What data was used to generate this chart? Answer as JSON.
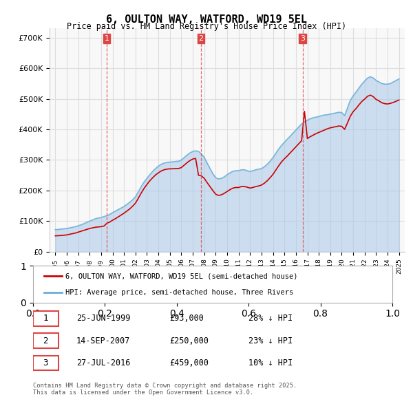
{
  "title": "6, OULTON WAY, WATFORD, WD19 5EL",
  "subtitle": "Price paid vs. HM Land Registry's House Price Index (HPI)",
  "legend_red": "6, OULTON WAY, WATFORD, WD19 5EL (semi-detached house)",
  "legend_blue": "HPI: Average price, semi-detached house, Three Rivers",
  "footer": "Contains HM Land Registry data © Crown copyright and database right 2025.\nThis data is licensed under the Open Government Licence v3.0.",
  "transactions": [
    {
      "label": "1",
      "date": "25-JUN-1999",
      "price": 93000,
      "hpi_diff": "28% ↓ HPI",
      "year_x": 1999.49
    },
    {
      "label": "2",
      "date": "14-SEP-2007",
      "price": 250000,
      "hpi_diff": "23% ↓ HPI",
      "year_x": 2007.71
    },
    {
      "label": "3",
      "date": "27-JUL-2016",
      "price": 459000,
      "hpi_diff": "10% ↓ HPI",
      "year_x": 2016.58
    }
  ],
  "ylim": [
    0,
    730000
  ],
  "yticks": [
    0,
    100000,
    200000,
    300000,
    400000,
    500000,
    600000,
    700000
  ],
  "ytick_labels": [
    "£0",
    "£100K",
    "£200K",
    "£300K",
    "£400K",
    "£500K",
    "£600K",
    "£700K"
  ],
  "xlim_start": 1994.5,
  "xlim_end": 2025.5,
  "red_color": "#cc0000",
  "blue_color": "#a0c4e8",
  "blue_color_dark": "#6aaed6",
  "vline_color": "#dd4444",
  "bg_color": "#f8f8f8",
  "grid_color": "#dddddd",
  "hpi_data": {
    "years": [
      1995.0,
      1995.25,
      1995.5,
      1995.75,
      1996.0,
      1996.25,
      1996.5,
      1996.75,
      1997.0,
      1997.25,
      1997.5,
      1997.75,
      1998.0,
      1998.25,
      1998.5,
      1998.75,
      1999.0,
      1999.25,
      1999.5,
      1999.75,
      2000.0,
      2000.25,
      2000.5,
      2000.75,
      2001.0,
      2001.25,
      2001.5,
      2001.75,
      2002.0,
      2002.25,
      2002.5,
      2002.75,
      2003.0,
      2003.25,
      2003.5,
      2003.75,
      2004.0,
      2004.25,
      2004.5,
      2004.75,
      2005.0,
      2005.25,
      2005.5,
      2005.75,
      2006.0,
      2006.25,
      2006.5,
      2006.75,
      2007.0,
      2007.25,
      2007.5,
      2007.75,
      2008.0,
      2008.25,
      2008.5,
      2008.75,
      2009.0,
      2009.25,
      2009.5,
      2009.75,
      2010.0,
      2010.25,
      2010.5,
      2010.75,
      2011.0,
      2011.25,
      2011.5,
      2011.75,
      2012.0,
      2012.25,
      2012.5,
      2012.75,
      2013.0,
      2013.25,
      2013.5,
      2013.75,
      2014.0,
      2014.25,
      2014.5,
      2014.75,
      2015.0,
      2015.25,
      2015.5,
      2015.75,
      2016.0,
      2016.25,
      2016.5,
      2016.75,
      2017.0,
      2017.25,
      2017.5,
      2017.75,
      2018.0,
      2018.25,
      2018.5,
      2018.75,
      2019.0,
      2019.25,
      2019.5,
      2019.75,
      2020.0,
      2020.25,
      2020.5,
      2020.75,
      2021.0,
      2021.25,
      2021.5,
      2021.75,
      2022.0,
      2022.25,
      2022.5,
      2022.75,
      2023.0,
      2023.25,
      2023.5,
      2023.75,
      2024.0,
      2024.25,
      2024.5,
      2024.75,
      2025.0
    ],
    "values": [
      72000,
      73000,
      74000,
      75000,
      76000,
      78000,
      80000,
      82000,
      85000,
      88000,
      92000,
      96000,
      100000,
      104000,
      108000,
      110000,
      112000,
      115000,
      118000,
      122000,
      128000,
      133000,
      138000,
      143000,
      148000,
      155000,
      162000,
      170000,
      180000,
      196000,
      213000,
      228000,
      240000,
      252000,
      263000,
      272000,
      280000,
      286000,
      290000,
      292000,
      293000,
      294000,
      295000,
      296000,
      300000,
      308000,
      316000,
      323000,
      328000,
      330000,
      328000,
      320000,
      308000,
      290000,
      272000,
      255000,
      242000,
      238000,
      240000,
      245000,
      252000,
      258000,
      263000,
      265000,
      265000,
      268000,
      268000,
      265000,
      262000,
      265000,
      268000,
      270000,
      272000,
      278000,
      286000,
      296000,
      308000,
      322000,
      336000,
      348000,
      358000,
      368000,
      378000,
      388000,
      398000,
      408000,
      418000,
      425000,
      430000,
      435000,
      438000,
      440000,
      442000,
      445000,
      447000,
      448000,
      450000,
      452000,
      454000,
      456000,
      455000,
      445000,
      470000,
      495000,
      510000,
      522000,
      535000,
      548000,
      558000,
      568000,
      572000,
      568000,
      560000,
      555000,
      550000,
      548000,
      548000,
      550000,
      555000,
      560000,
      565000
    ]
  },
  "red_data": {
    "years": [
      1995.0,
      1995.25,
      1995.5,
      1995.75,
      1996.0,
      1996.25,
      1996.5,
      1996.75,
      1997.0,
      1997.25,
      1997.5,
      1997.75,
      1998.0,
      1998.25,
      1998.5,
      1998.75,
      1999.0,
      1999.25,
      1999.5,
      1999.75,
      2000.0,
      2000.25,
      2000.5,
      2000.75,
      2001.0,
      2001.25,
      2001.5,
      2001.75,
      2002.0,
      2002.25,
      2002.5,
      2002.75,
      2003.0,
      2003.25,
      2003.5,
      2003.75,
      2004.0,
      2004.25,
      2004.5,
      2004.75,
      2005.0,
      2005.25,
      2005.5,
      2005.75,
      2006.0,
      2006.25,
      2006.5,
      2006.75,
      2007.0,
      2007.25,
      2007.5,
      2007.75,
      2008.0,
      2008.25,
      2008.5,
      2008.75,
      2009.0,
      2009.25,
      2009.5,
      2009.75,
      2010.0,
      2010.25,
      2010.5,
      2010.75,
      2011.0,
      2011.25,
      2011.5,
      2011.75,
      2012.0,
      2012.25,
      2012.5,
      2012.75,
      2013.0,
      2013.25,
      2013.5,
      2013.75,
      2014.0,
      2014.25,
      2014.5,
      2014.75,
      2015.0,
      2015.25,
      2015.5,
      2015.75,
      2016.0,
      2016.25,
      2016.5,
      2016.75,
      2017.0,
      2017.25,
      2017.5,
      2017.75,
      2018.0,
      2018.25,
      2018.5,
      2018.75,
      2019.0,
      2019.25,
      2019.5,
      2019.75,
      2020.0,
      2020.25,
      2020.5,
      2020.75,
      2021.0,
      2021.25,
      2021.5,
      2021.75,
      2022.0,
      2022.25,
      2022.5,
      2022.75,
      2023.0,
      2023.25,
      2023.5,
      2023.75,
      2024.0,
      2024.25,
      2024.5,
      2024.75,
      2025.0
    ],
    "values": [
      52000,
      52500,
      53000,
      54000,
      55000,
      57000,
      59000,
      61000,
      64000,
      67000,
      70000,
      73000,
      76000,
      78000,
      80000,
      81000,
      82000,
      84000,
      93000,
      97000,
      103000,
      108000,
      114000,
      120000,
      126000,
      133000,
      140000,
      149000,
      159000,
      175000,
      192000,
      207000,
      220000,
      232000,
      242000,
      251000,
      258000,
      264000,
      268000,
      270000,
      271000,
      271000,
      272000,
      272000,
      275000,
      283000,
      291000,
      298000,
      303000,
      305000,
      250000,
      248000,
      240000,
      226000,
      213000,
      200000,
      188000,
      184000,
      186000,
      191000,
      197000,
      203000,
      208000,
      210000,
      210000,
      213000,
      213000,
      211000,
      208000,
      210000,
      213000,
      215000,
      218000,
      224000,
      232000,
      242000,
      253000,
      267000,
      281000,
      294000,
      304000,
      313000,
      323000,
      333000,
      343000,
      353000,
      363000,
      459000,
      370000,
      376000,
      381000,
      386000,
      390000,
      394000,
      398000,
      402000,
      405000,
      407000,
      409000,
      411000,
      410000,
      400000,
      421000,
      443000,
      458000,
      468000,
      480000,
      491000,
      499000,
      508000,
      512000,
      507000,
      498000,
      493000,
      487000,
      484000,
      483000,
      485000,
      488000,
      492000,
      496000
    ]
  },
  "xtick_years": [
    1995,
    1996,
    1997,
    1998,
    1999,
    2000,
    2001,
    2002,
    2003,
    2004,
    2005,
    2006,
    2007,
    2008,
    2009,
    2010,
    2011,
    2012,
    2013,
    2014,
    2015,
    2016,
    2017,
    2018,
    2019,
    2020,
    2021,
    2022,
    2023,
    2024,
    2025
  ]
}
